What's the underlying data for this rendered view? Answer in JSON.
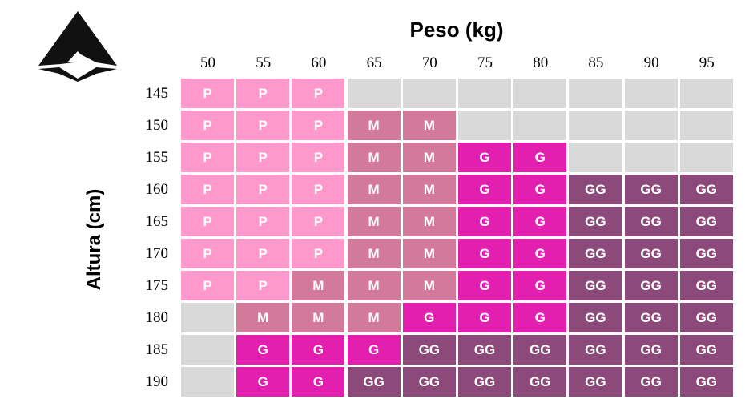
{
  "logo": {
    "icon": "triangle-logo"
  },
  "chart_data": {
    "type": "table",
    "title": "Peso (kg)",
    "ylabel": "Altura (cm)",
    "columns": [
      "50",
      "55",
      "60",
      "65",
      "70",
      "75",
      "80",
      "85",
      "90",
      "95"
    ],
    "rows": [
      "145",
      "150",
      "155",
      "160",
      "165",
      "170",
      "175",
      "180",
      "185",
      "190"
    ],
    "cells": [
      [
        "P",
        "P",
        "P",
        "",
        "",
        "",
        "",
        "",
        "",
        ""
      ],
      [
        "P",
        "P",
        "P",
        "M",
        "M",
        "",
        "",
        "",
        "",
        ""
      ],
      [
        "P",
        "P",
        "P",
        "M",
        "M",
        "G",
        "G",
        "",
        "",
        ""
      ],
      [
        "P",
        "P",
        "P",
        "M",
        "M",
        "G",
        "G",
        "GG",
        "GG",
        "GG"
      ],
      [
        "P",
        "P",
        "P",
        "M",
        "M",
        "G",
        "G",
        "GG",
        "GG",
        "GG"
      ],
      [
        "P",
        "P",
        "P",
        "M",
        "M",
        "G",
        "G",
        "GG",
        "GG",
        "GG"
      ],
      [
        "P",
        "P",
        "M",
        "M",
        "M",
        "G",
        "G",
        "GG",
        "GG",
        "GG"
      ],
      [
        "",
        "M",
        "M",
        "M",
        "G",
        "G",
        "G",
        "GG",
        "GG",
        "GG"
      ],
      [
        "",
        "G",
        "G",
        "G",
        "GG",
        "GG",
        "GG",
        "GG",
        "GG",
        "GG"
      ],
      [
        "",
        "G",
        "G",
        "GG",
        "GG",
        "GG",
        "GG",
        "GG",
        "GG",
        "GG"
      ]
    ],
    "colors": {
      "P": "#ff99cc",
      "M": "#d3799a",
      "G": "#e21fae",
      "GG": "#8b4a7a",
      "empty": "#d9d9d9"
    }
  }
}
